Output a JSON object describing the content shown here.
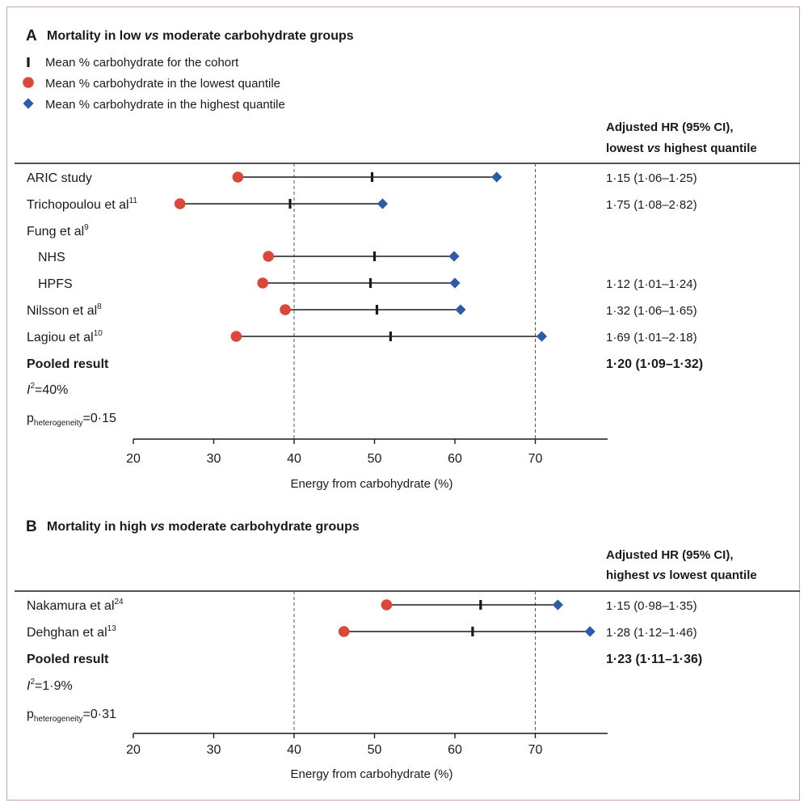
{
  "colors": {
    "lowest": "#d9483b",
    "highest": "#2e5aa8",
    "ink": "#1a1a1a",
    "grid": "#555555"
  },
  "legend": {
    "cohort_mean": "Mean % carbohydrate for the cohort",
    "lowest_mean": "Mean % carbohydrate in the lowest quantile",
    "highest_mean": "Mean % carbohydrate in the highest quantile"
  },
  "chart_data": [
    {
      "type": "scatter",
      "panel_letter": "A",
      "title": "Mortality in low vs moderate carbohydrate groups",
      "hr_header": [
        "Adjusted HR (95% CI),",
        "lowest vs highest quantile"
      ],
      "xlabel": "Energy from carbohydrate (%)",
      "xlim": [
        20,
        80
      ],
      "xticks": [
        20,
        30,
        40,
        50,
        60,
        70
      ],
      "reference_lines": [
        40,
        70
      ],
      "rows": [
        {
          "label": "ARIC study",
          "sup": "",
          "indent": false,
          "lowest": 33,
          "cohort": 49.7,
          "highest": 65.2,
          "hr": "1·15 (1·06–1·25)"
        },
        {
          "label": "Trichopoulou et al",
          "sup": "11",
          "indent": false,
          "lowest": 25.8,
          "cohort": 39.5,
          "highest": 51,
          "hr": "1·75 (1·08–2·82)"
        },
        {
          "label": "Fung et al",
          "sup": "9",
          "indent": false,
          "hr": ""
        },
        {
          "label": "NHS",
          "sup": "",
          "indent": true,
          "lowest": 36.8,
          "cohort": 50,
          "highest": 59.9,
          "hr": ""
        },
        {
          "label": "HPFS",
          "sup": "",
          "indent": true,
          "lowest": 36.1,
          "cohort": 49.5,
          "highest": 60,
          "hr": "1·12 (1·01–1·24)"
        },
        {
          "label": "Nilsson et al",
          "sup": "8",
          "indent": false,
          "lowest": 38.9,
          "cohort": 50.3,
          "highest": 60.7,
          "hr": "1·32 (1·06–1·65)"
        },
        {
          "label": "Lagiou et al",
          "sup": "10",
          "indent": false,
          "lowest": 32.8,
          "cohort": 52,
          "highest": 70.8,
          "hr": "1·69 (1·01–2·18)"
        }
      ],
      "pooled": {
        "label": "Pooled result",
        "hr": "1·20 (1·09–1·32)"
      },
      "i2": "=40%",
      "p_het": "=0·15"
    },
    {
      "type": "scatter",
      "panel_letter": "B",
      "title": "Mortality in high vs moderate carbohydrate groups",
      "hr_header": [
        "Adjusted HR (95% CI),",
        "highest vs lowest quantile"
      ],
      "xlabel": "Energy from carbohydrate (%)",
      "xlim": [
        20,
        80
      ],
      "xticks": [
        20,
        30,
        40,
        50,
        60,
        70
      ],
      "reference_lines": [
        40,
        70
      ],
      "rows": [
        {
          "label": "Nakamura et al",
          "sup": "24",
          "indent": false,
          "lowest": 51.5,
          "cohort": 63.2,
          "highest": 72.8,
          "hr": "1·15 (0·98–1·35)"
        },
        {
          "label": "Dehghan et al",
          "sup": "13",
          "indent": false,
          "lowest": 46.2,
          "cohort": 62.2,
          "highest": 76.8,
          "hr": "1·28 (1·12–1·46)"
        }
      ],
      "pooled": {
        "label": "Pooled result",
        "hr": "1·23 (1·11–1·36)"
      },
      "i2": "=1·9%",
      "p_het": "=0·31"
    }
  ]
}
